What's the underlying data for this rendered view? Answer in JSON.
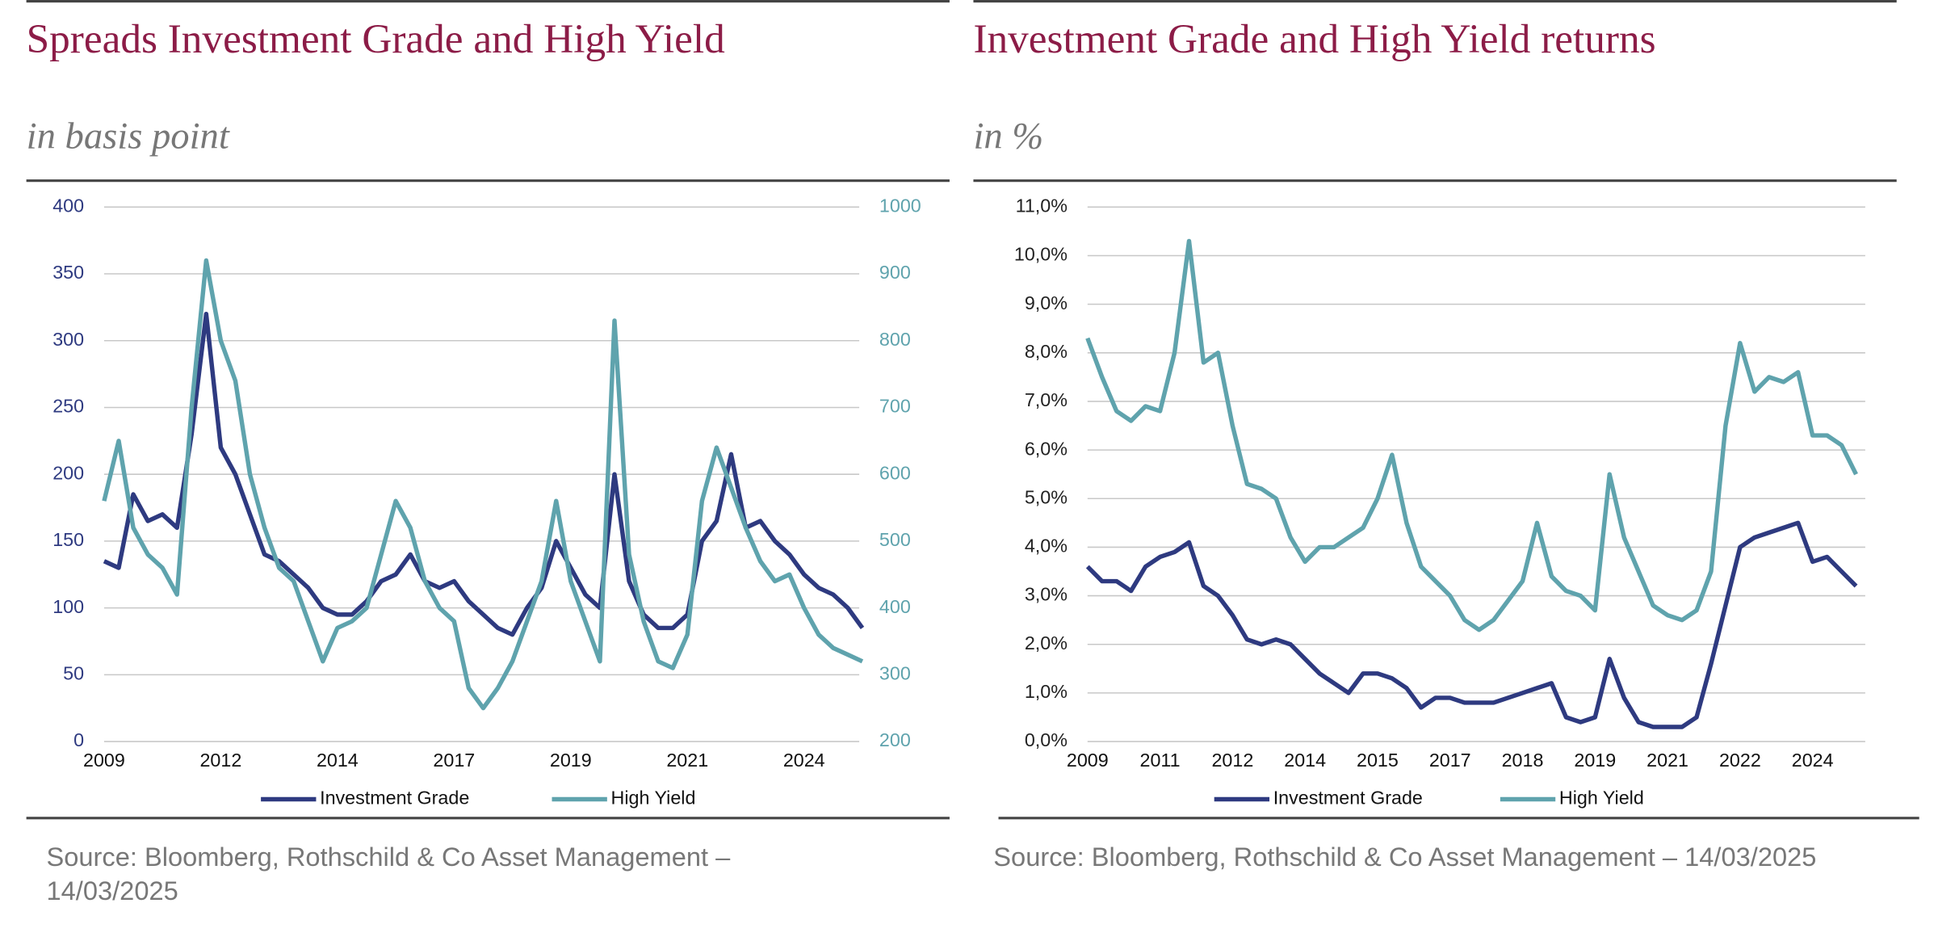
{
  "chart_data": [
    {
      "type": "line",
      "title": "Spreads Investment Grade and High Yield",
      "subtitle": "in basis point",
      "source": "Source: Bloomberg, Rothschild & Co Asset Management – 14/03/2025",
      "categories": [
        "2009",
        null,
        null,
        null,
        null,
        null,
        null,
        null,
        "2012",
        null,
        null,
        null,
        null,
        null,
        null,
        null,
        "2014",
        null,
        null,
        null,
        null,
        null,
        null,
        null,
        "2017",
        null,
        null,
        null,
        null,
        null,
        null,
        null,
        "2019",
        null,
        null,
        null,
        null,
        null,
        null,
        null,
        "2021",
        null,
        null,
        null,
        null,
        null,
        null,
        null,
        "2024",
        null,
        null,
        null,
        null
      ],
      "ylim": [
        0,
        400
      ],
      "yticks": [
        0,
        50,
        100,
        150,
        200,
        250,
        300,
        350,
        400
      ],
      "y2lim": [
        200,
        1000
      ],
      "y2ticks": [
        200,
        300,
        400,
        500,
        600,
        700,
        800,
        900,
        1000
      ],
      "grid": true,
      "legend": "bottom",
      "series": [
        {
          "name": "Investment Grade",
          "color": "#2e3a80",
          "values": [
            135,
            130,
            185,
            165,
            170,
            160,
            230,
            320,
            220,
            200,
            170,
            140,
            135,
            125,
            115,
            100,
            95,
            95,
            105,
            120,
            125,
            140,
            120,
            115,
            120,
            105,
            95,
            85,
            80,
            100,
            115,
            150,
            130,
            110,
            100,
            200,
            120,
            95,
            85,
            85,
            95,
            150,
            165,
            215,
            160,
            165,
            150,
            140,
            125,
            115,
            110,
            100,
            85
          ]
        },
        {
          "name": "High Yield",
          "color": "#5fa3ad",
          "axis": "y2",
          "values": [
            560,
            650,
            520,
            480,
            460,
            420,
            700,
            920,
            800,
            740,
            600,
            520,
            460,
            440,
            380,
            320,
            370,
            380,
            400,
            480,
            560,
            520,
            440,
            400,
            380,
            280,
            250,
            280,
            320,
            380,
            440,
            560,
            440,
            380,
            320,
            830,
            480,
            380,
            320,
            310,
            360,
            560,
            640,
            580,
            520,
            470,
            440,
            450,
            400,
            360,
            340,
            330,
            320
          ]
        }
      ]
    },
    {
      "type": "line",
      "title": "Investment Grade and High Yield returns",
      "subtitle": "in %",
      "source": "Source: Bloomberg, Rothschild & Co Asset Management – 14/03/2025",
      "categories": [
        "2009",
        null,
        null,
        null,
        null,
        "2011",
        null,
        null,
        null,
        null,
        "2012",
        null,
        null,
        null,
        null,
        "2014",
        null,
        null,
        null,
        null,
        "2015",
        null,
        null,
        null,
        null,
        "2017",
        null,
        null,
        null,
        null,
        "2018",
        null,
        null,
        null,
        null,
        "2019",
        null,
        null,
        null,
        null,
        "2021",
        null,
        null,
        null,
        null,
        "2022",
        null,
        null,
        null,
        null,
        "2024",
        null,
        null,
        null
      ],
      "ylim": [
        0,
        11
      ],
      "yticks": [
        {
          "value": 0,
          "label": "0,0%"
        },
        {
          "value": 1,
          "label": "1,0%"
        },
        {
          "value": 2,
          "label": "2,0%"
        },
        {
          "value": 3,
          "label": "3,0%"
        },
        {
          "value": 4,
          "label": "4,0%"
        },
        {
          "value": 5,
          "label": "5,0%"
        },
        {
          "value": 6,
          "label": "6,0%"
        },
        {
          "value": 7,
          "label": "7,0%"
        },
        {
          "value": 8,
          "label": "8,0%"
        },
        {
          "value": 9,
          "label": "9,0%"
        },
        {
          "value": 10,
          "label": "10,0%"
        },
        {
          "value": 11,
          "label": "11,0%"
        }
      ],
      "grid": true,
      "legend": "bottom",
      "series": [
        {
          "name": "Investment Grade",
          "color": "#2e3a80",
          "values": [
            3.6,
            3.3,
            3.3,
            3.1,
            3.6,
            3.8,
            3.9,
            4.1,
            3.2,
            3.0,
            2.6,
            2.1,
            2.0,
            2.1,
            2.0,
            1.7,
            1.4,
            1.2,
            1.0,
            1.4,
            1.4,
            1.3,
            1.1,
            0.7,
            0.9,
            0.9,
            0.8,
            0.8,
            0.8,
            0.9,
            1.0,
            1.1,
            1.2,
            0.5,
            0.4,
            0.5,
            1.7,
            0.9,
            0.4,
            0.3,
            0.3,
            0.3,
            0.5,
            1.6,
            2.8,
            4.0,
            4.2,
            4.3,
            4.4,
            4.5,
            3.7,
            3.8,
            3.5,
            3.2
          ]
        },
        {
          "name": "High Yield",
          "color": "#5fa3ad",
          "values": [
            8.3,
            7.5,
            6.8,
            6.6,
            6.9,
            6.8,
            8.0,
            10.3,
            7.8,
            8.0,
            6.5,
            5.3,
            5.2,
            5.0,
            4.2,
            3.7,
            4.0,
            4.0,
            4.2,
            4.4,
            5.0,
            5.9,
            4.5,
            3.6,
            3.3,
            3.0,
            2.5,
            2.3,
            2.5,
            2.9,
            3.3,
            4.5,
            3.4,
            3.1,
            3.0,
            2.7,
            5.5,
            4.2,
            3.5,
            2.8,
            2.6,
            2.5,
            2.7,
            3.5,
            6.5,
            8.2,
            7.2,
            7.5,
            7.4,
            7.6,
            6.3,
            6.3,
            6.1,
            5.5
          ]
        }
      ]
    }
  ]
}
